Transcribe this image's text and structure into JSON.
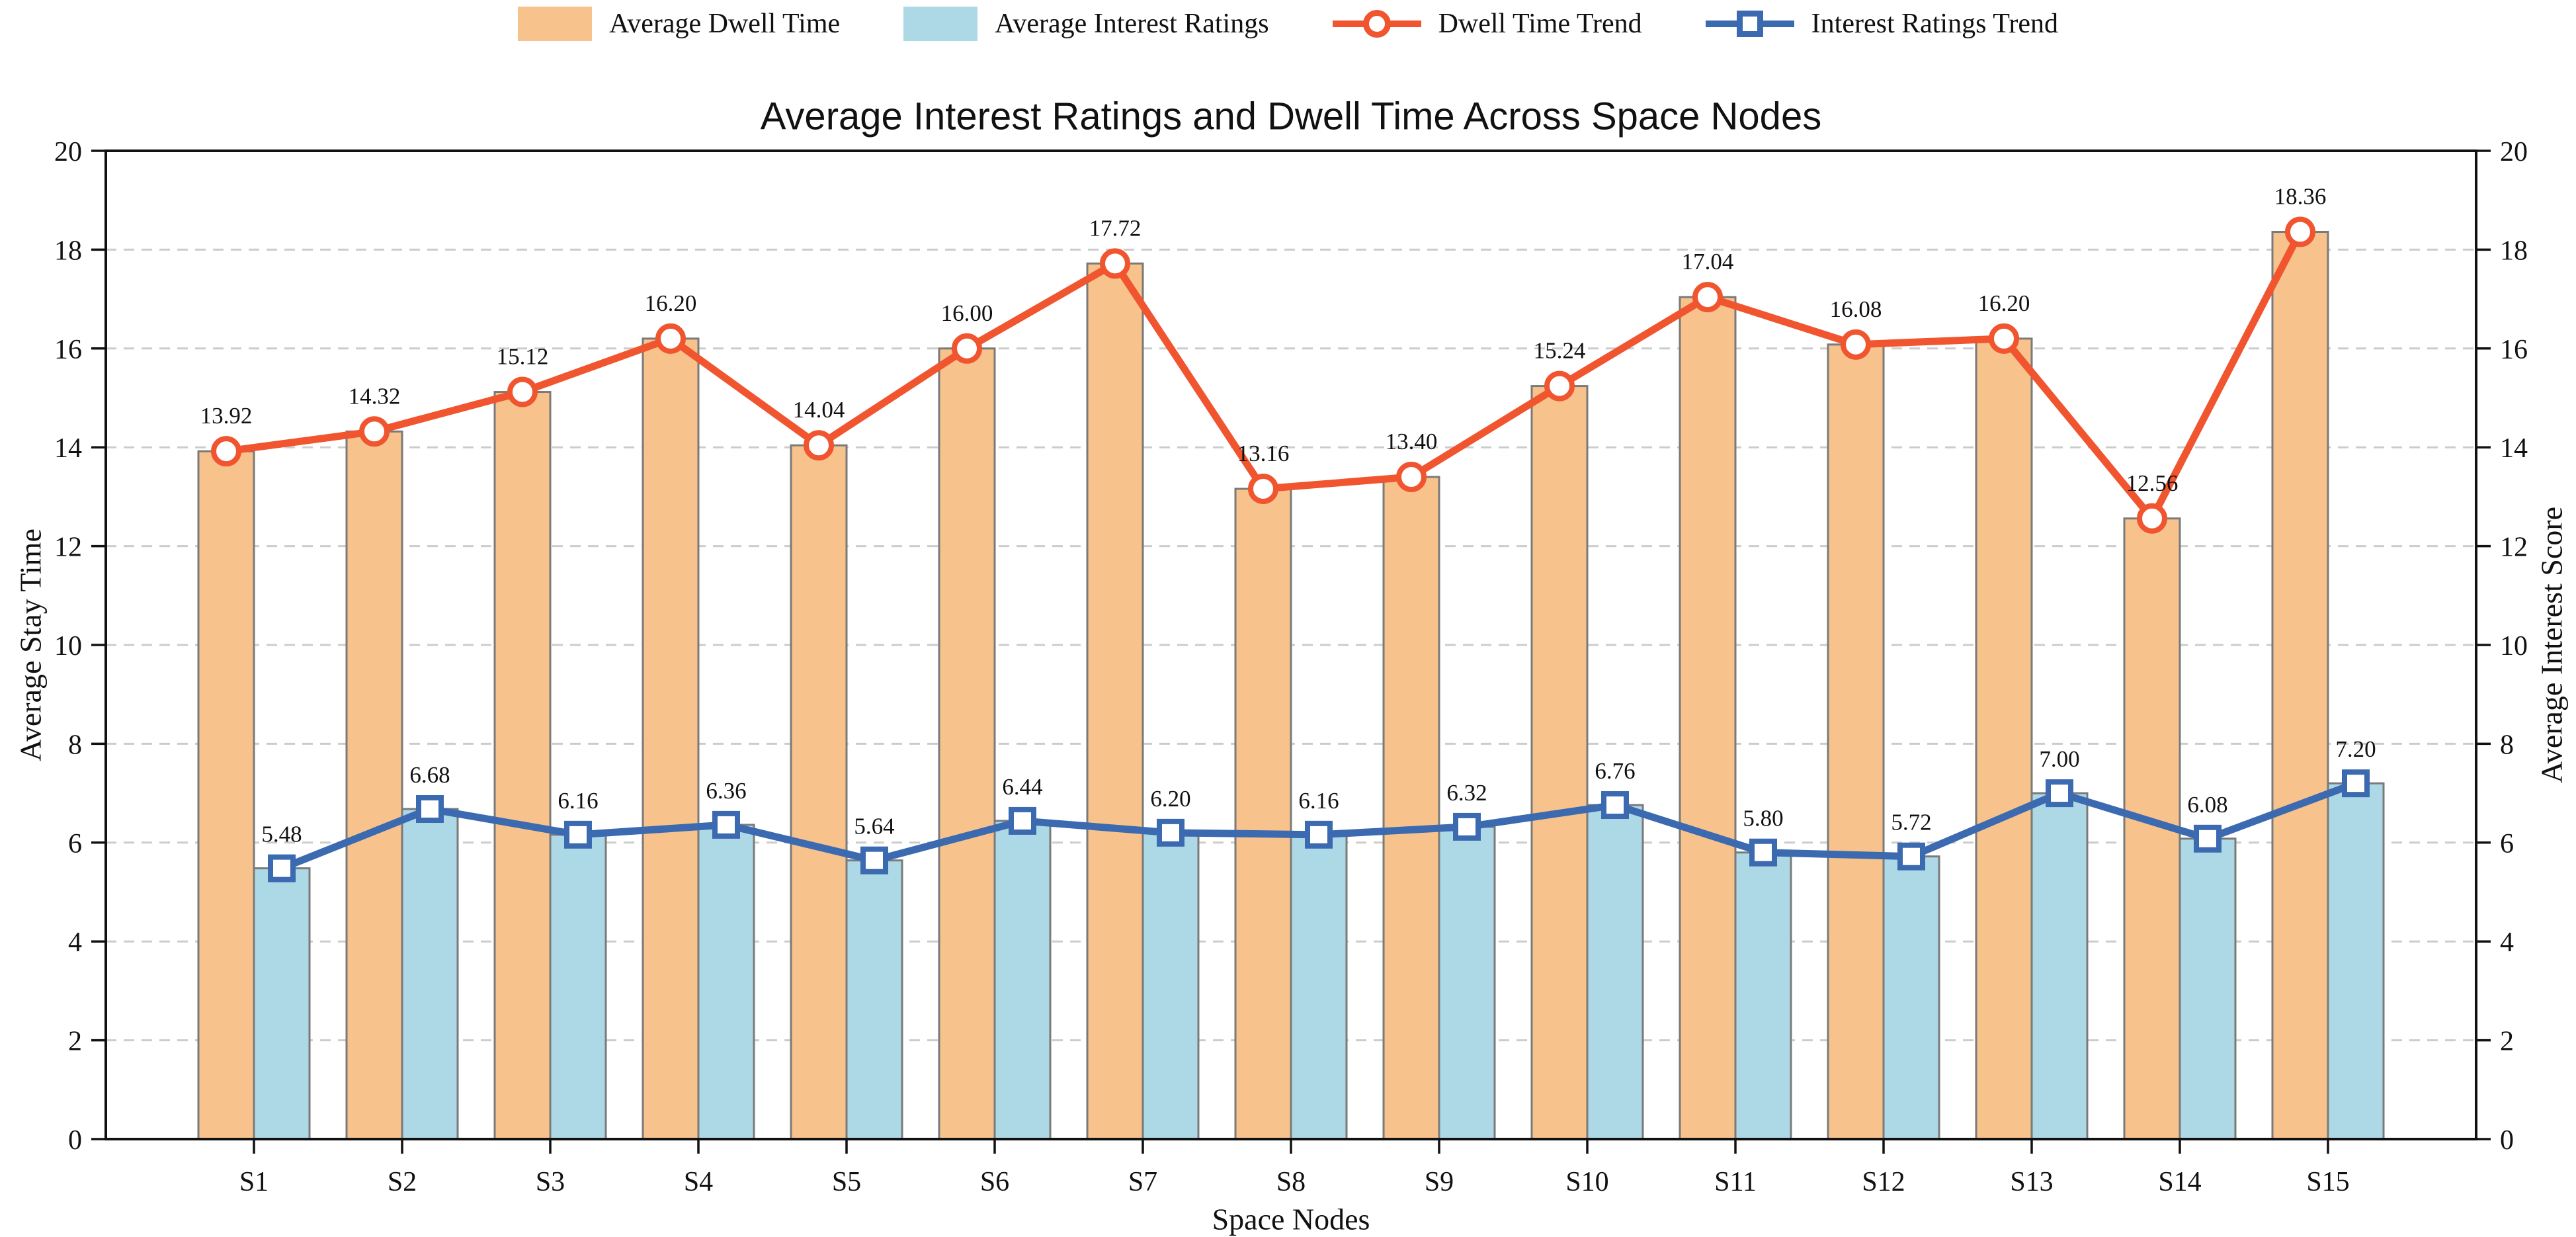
{
  "title": "Average Interest Ratings and Dwell Time Across Space Nodes",
  "chart_data": {
    "type": "bar+line",
    "title": "Average Interest Ratings and Dwell Time Across Space Nodes",
    "categories": [
      "S1",
      "S2",
      "S3",
      "S4",
      "S5",
      "S6",
      "S7",
      "S8",
      "S9",
      "S10",
      "S11",
      "S12",
      "S13",
      "S14",
      "S15"
    ],
    "series": [
      {
        "name": "Average Dwell Time",
        "type": "bar",
        "axis": "left",
        "color": "#F7C28B",
        "edge_color": "#7a7a7a",
        "values": [
          13.92,
          14.32,
          15.12,
          16.2,
          14.04,
          16.0,
          17.72,
          13.16,
          13.4,
          15.24,
          17.04,
          16.08,
          16.2,
          12.56,
          18.36
        ]
      },
      {
        "name": "Average Interest Ratings",
        "type": "bar",
        "axis": "right",
        "color": "#ADD8E6",
        "edge_color": "#7a7a7a",
        "values": [
          5.48,
          6.68,
          6.16,
          6.36,
          5.64,
          6.44,
          6.2,
          6.16,
          6.32,
          6.76,
          5.8,
          5.72,
          7.0,
          6.08,
          7.2
        ]
      },
      {
        "name": "Dwell Time Trend",
        "type": "line",
        "marker": "circle",
        "color": "#F0552F",
        "values": [
          13.92,
          14.32,
          15.12,
          16.2,
          14.04,
          16.0,
          17.72,
          13.16,
          13.4,
          15.24,
          17.04,
          16.08,
          16.2,
          12.56,
          18.36
        ]
      },
      {
        "name": "Interest Ratings Trend",
        "type": "line",
        "marker": "square",
        "color": "#3B6AB1",
        "values": [
          5.48,
          6.68,
          6.16,
          6.36,
          5.64,
          6.44,
          6.2,
          6.16,
          6.32,
          6.76,
          5.8,
          5.72,
          7.0,
          6.08,
          7.2
        ]
      }
    ],
    "xlabel": "Space Nodes",
    "ylabel_left": "Average Stay Time",
    "ylabel_right": "Average Interest Score",
    "ylim": [
      0,
      20
    ],
    "y_ticks": [
      0,
      2,
      4,
      6,
      8,
      10,
      12,
      14,
      16,
      18,
      20
    ],
    "grid": "horizontal dashed",
    "grid_color": "#cccccc",
    "legend_position": "top center",
    "value_label_format": "2 decimals"
  }
}
